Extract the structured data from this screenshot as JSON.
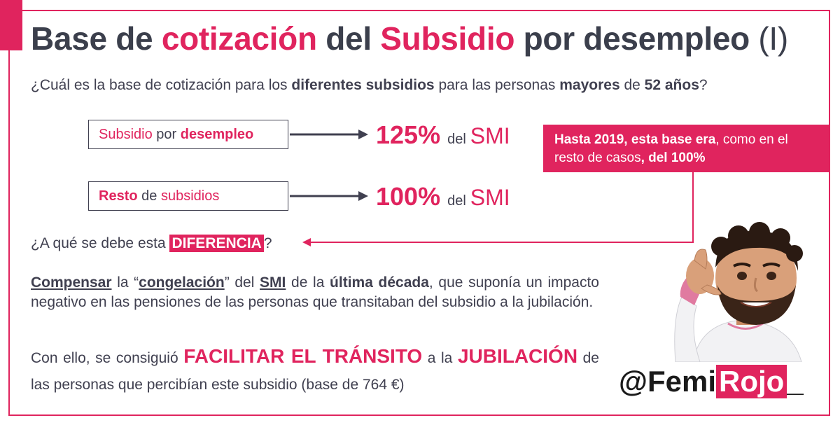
{
  "title": {
    "part1": "Base de",
    "part2": "cotización",
    "part3": "del",
    "part4": "Subsidio",
    "part5": "por desempleo",
    "part6": "(I)"
  },
  "question": {
    "part1": "¿Cuál es la base de cotización para los",
    "part2": "diferentes subsidios",
    "part3": "para las personas",
    "part4": "mayores",
    "part5": "de",
    "part6": "52 años",
    "part7": "?"
  },
  "box1": {
    "w1": "Subsidio",
    "w2": "por",
    "w3": "desempleo"
  },
  "box2": {
    "w1": "Resto",
    "w2": "de",
    "w3": "subsidios"
  },
  "row1": {
    "pct": "125%",
    "del": "del",
    "smi": "SMI"
  },
  "row2": {
    "pct": "100%",
    "del": "del",
    "smi": "SMI"
  },
  "callout": {
    "part1": "Hasta 2019, esta base era",
    "part2": ", como en el resto de casos",
    "part3": ", del 100%"
  },
  "line2": {
    "before": "¿A qué se debe esta",
    "highlight": "DIFERENCIA",
    "after": "?"
  },
  "para1": {
    "w1": "Compensar",
    "w2": "la “",
    "w3": "congelación",
    "w4": "” del",
    "w5": "SMI",
    "w6": "de la",
    "w7": "última década",
    "w8": ", que suponía un impacto negativo en las pensiones de las personas que transitaban del subsidio a la jubilación."
  },
  "para2": {
    "w1": "Con ello, se consiguió",
    "w2": "FACILITAR EL TRÁNSITO",
    "w3": "a la",
    "w4": "JUBILACIÓN",
    "w5": "de las personas que percibían este subsidio (base de 764 €)"
  },
  "handle": {
    "at": "@",
    "femi": "Femi",
    "rojo": "Rojo",
    "underscore": "_"
  },
  "colors": {
    "accent": "#e0245e",
    "text": "#404050",
    "title": "#3b3f4c"
  },
  "icons": {
    "avatar": "memoji-avatar-icon",
    "arrow": "arrow-right-icon"
  }
}
